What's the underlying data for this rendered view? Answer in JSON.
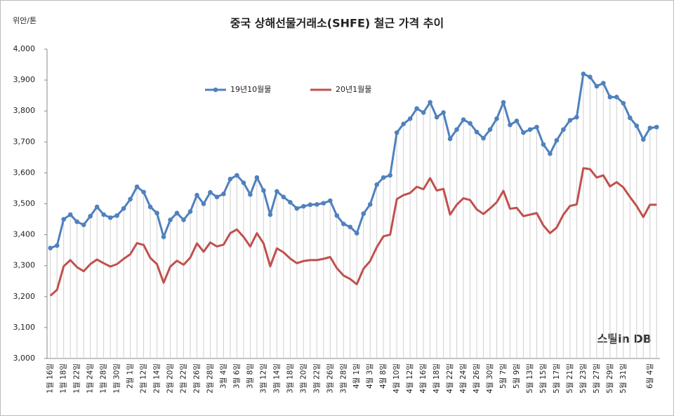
{
  "chart_data": {
    "type": "line",
    "title": "중국 상해선물거래소(SHFE) 철근 가격 추이",
    "y_axis_label": "위안/톤",
    "annotation": "스틸in DB",
    "legend_position": "top",
    "categories": [
      "1월 16일",
      null,
      "1월 18일",
      null,
      "1월 22일",
      null,
      "1월 24일",
      null,
      "1월 28일",
      null,
      "1월 30일",
      null,
      "2월 1일",
      null,
      "2월 12일",
      null,
      "2월 14일",
      null,
      "2월 20일",
      null,
      "2월 22일",
      null,
      "2월 26일",
      null,
      "2월 28일",
      null,
      "3월 4일",
      null,
      "3월 6일",
      null,
      "3월 8일",
      null,
      "3월 12일",
      null,
      "3월 14일",
      null,
      "3월 18일",
      null,
      "3월 20일",
      null,
      "3월 22일",
      null,
      "3월 26일",
      null,
      "3월 28일",
      null,
      "4월 1일",
      null,
      "4월 3일",
      null,
      "4월 8일",
      null,
      "4월 10일",
      null,
      "4월 12일",
      null,
      "4월 16일",
      null,
      "4월 18일",
      null,
      "4월 22일",
      null,
      "4월 24일",
      null,
      "4월 26일",
      null,
      "4월 30일",
      null,
      "5월 7일",
      null,
      "5월 9일",
      null,
      "5월 13일",
      null,
      "5월 15일",
      null,
      "5월 17일",
      null,
      "5월 21일",
      null,
      "5월 23일",
      null,
      "5월 27일",
      null,
      "5월 29일",
      null,
      "5월 31일",
      null,
      null,
      null,
      "6월 4일",
      null
    ],
    "series": [
      {
        "name": "19년10월물",
        "color": "#4f81bd",
        "markers": true,
        "values": [
          3357,
          3365,
          3450,
          3465,
          3442,
          3432,
          3460,
          3490,
          3465,
          3455,
          3462,
          3485,
          3515,
          3555,
          3538,
          3490,
          3470,
          3393,
          3448,
          3470,
          3448,
          3475,
          3528,
          3500,
          3537,
          3522,
          3532,
          3580,
          3592,
          3568,
          3530,
          3585,
          3543,
          3465,
          3540,
          3522,
          3505,
          3485,
          3492,
          3497,
          3498,
          3502,
          3510,
          3462,
          3435,
          3425,
          3405,
          3468,
          3498,
          3562,
          3585,
          3592,
          3730,
          3758,
          3775,
          3808,
          3795,
          3828,
          3780,
          3795,
          3710,
          3740,
          3772,
          3760,
          3732,
          3712,
          3740,
          3775,
          3828,
          3755,
          3768,
          3730,
          3740,
          3748,
          3692,
          3662,
          3705,
          3740,
          3770,
          3780,
          3920,
          3910,
          3880,
          3890,
          3845,
          3845,
          3825,
          3778,
          3752,
          3708,
          3745,
          3748
        ]
      },
      {
        "name": "20년1월물",
        "color": "#c0504d",
        "markers": false,
        "values": [
          3203,
          3222,
          3298,
          3318,
          3295,
          3282,
          3305,
          3320,
          3308,
          3297,
          3305,
          3322,
          3337,
          3373,
          3367,
          3325,
          3305,
          3245,
          3297,
          3316,
          3303,
          3326,
          3372,
          3345,
          3375,
          3362,
          3368,
          3405,
          3417,
          3393,
          3362,
          3405,
          3372,
          3298,
          3356,
          3343,
          3323,
          3308,
          3315,
          3318,
          3318,
          3322,
          3328,
          3292,
          3268,
          3257,
          3240,
          3290,
          3315,
          3360,
          3395,
          3400,
          3515,
          3528,
          3535,
          3555,
          3547,
          3583,
          3543,
          3548,
          3465,
          3497,
          3518,
          3512,
          3482,
          3467,
          3485,
          3505,
          3542,
          3484,
          3487,
          3460,
          3465,
          3470,
          3430,
          3405,
          3423,
          3465,
          3493,
          3498,
          3615,
          3612,
          3585,
          3592,
          3556,
          3570,
          3553,
          3522,
          3493,
          3457,
          3497,
          3497
        ]
      }
    ],
    "ylim": [
      3000,
      4000
    ],
    "yticks": [
      {
        "value": 3000,
        "label": "3,000"
      },
      {
        "value": 3100,
        "label": "3,100"
      },
      {
        "value": 3200,
        "label": "3,200"
      },
      {
        "value": 3300,
        "label": "3,300"
      },
      {
        "value": 3400,
        "label": "3,400"
      },
      {
        "value": 3500,
        "label": "3,500"
      },
      {
        "value": 3600,
        "label": "3,600"
      },
      {
        "value": 3700,
        "label": "3,700"
      },
      {
        "value": 3800,
        "label": "3,800"
      },
      {
        "value": 3900,
        "label": "3,900"
      },
      {
        "value": 4000,
        "label": "4,000"
      }
    ],
    "grid": false
  }
}
